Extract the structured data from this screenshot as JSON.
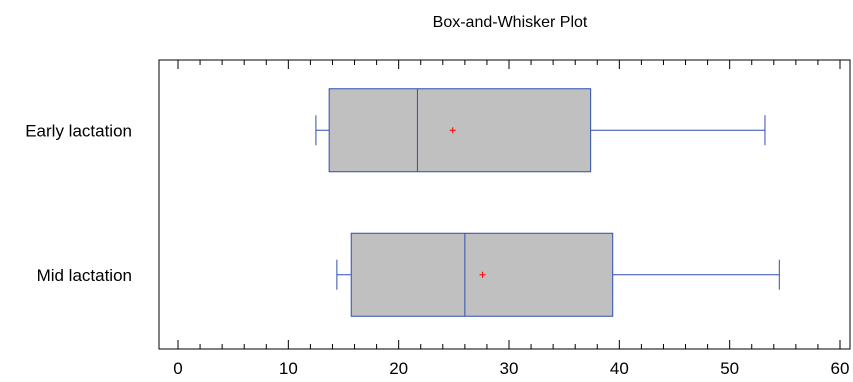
{
  "chart_data": {
    "type": "boxplot",
    "title": "Box-and-Whisker Plot",
    "orientation": "horizontal",
    "xlim": [
      0,
      60
    ],
    "xticks": [
      0,
      10,
      20,
      30,
      40,
      50,
      60
    ],
    "minor_tick_step": 2,
    "grid": false,
    "series": [
      {
        "name": "Early lactation",
        "min": 12.5,
        "q1": 13.7,
        "median": 21.7,
        "q3": 37.4,
        "max": 53.2,
        "mean": 24.9
      },
      {
        "name": "Mid lactation",
        "min": 14.4,
        "q1": 15.7,
        "median": 26.0,
        "q3": 39.4,
        "max": 54.5,
        "mean": 27.6
      }
    ],
    "colors": {
      "box_fill": "#c0c0c0",
      "box_stroke": "#2f4fb3",
      "mean_marker": "#ff0000",
      "axis": "#000000"
    }
  }
}
